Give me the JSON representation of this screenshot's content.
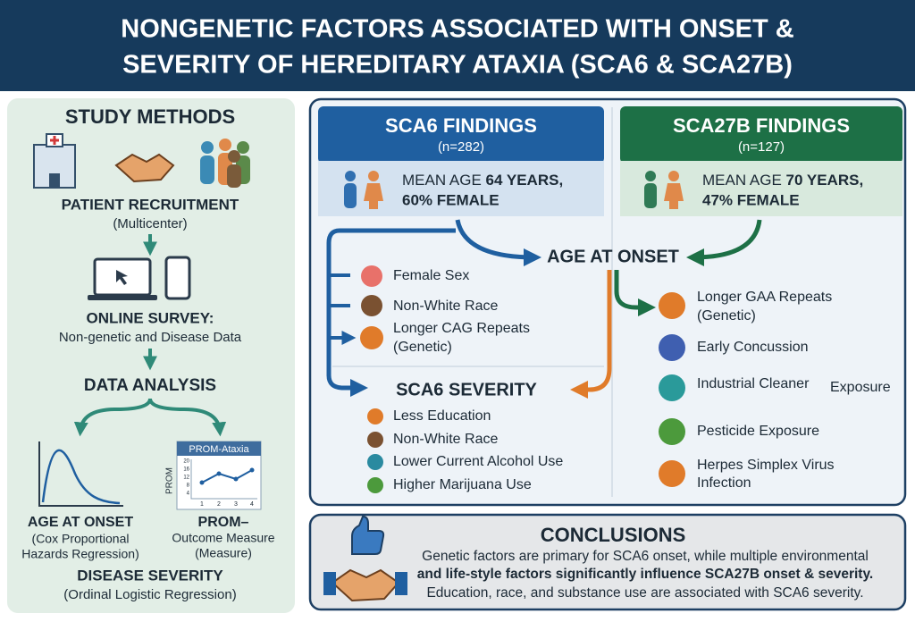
{
  "header": {
    "title_lines": [
      "NONGENETIC FACTORS ASSOCIATED WITH ONSET &",
      "SEVERITY OF HEREDITARY ATAXIA (SCA6 & SCA27B)"
    ]
  },
  "methods": {
    "title": "STUDY METHODS",
    "recruitment": {
      "label": "PATIENT RECRUITMENT",
      "sub": "(Multicenter)"
    },
    "survey": {
      "label": "ONLINE SURVEY:",
      "sub": "Non-genetic and Disease Data"
    },
    "analysis": {
      "label": "DATA ANALYSIS"
    },
    "onset": {
      "label": "AGE AT ONSET",
      "sub_lines": [
        "(Cox Proportional",
        "Hazards Regression)"
      ]
    },
    "prom": {
      "label": "PROM–",
      "sub_lines": [
        "Outcome Measure",
        "(Measure)"
      ],
      "chart_title": "PROM-Ataxia",
      "axis_label": "PROM",
      "xticks": [
        "1",
        "2",
        "3",
        "4"
      ],
      "yticks": [
        "20",
        "16",
        "12",
        "8",
        "4"
      ]
    },
    "severity": {
      "label": "DISEASE SEVERITY",
      "sub": "(Ordinal Logistic Regression)"
    }
  },
  "sca6": {
    "title": "SCA6 FINDINGS",
    "n": "(n=282)",
    "demo_prefix": "MEAN AGE",
    "demo_bold": "64 YEARS,",
    "demo_line2": "60% FEMALE"
  },
  "sca27b": {
    "title": "SCA27B FINDINGS",
    "n": "(n=127)",
    "demo_prefix": "MEAN AGE",
    "demo_bold": "70 YEARS,",
    "demo_line2": "47% FEMALE"
  },
  "onset": {
    "title": "AGE AT ONSET"
  },
  "sca6_onset_factors": [
    "Female Sex",
    "Non-White Race",
    "Longer CAG Repeats",
    "(Genetic)"
  ],
  "sca6_severity": {
    "title": "SCA6 SEVERITY",
    "factors": [
      "Less Education",
      "Non-White Race",
      "Lower Current Alcohol Use",
      "Higher Marijuana Use"
    ]
  },
  "sca27b_factors": [
    "Longer GAA Repeats",
    "(Genetic)",
    "Early Concussion",
    "Industrial Cleaner",
    "Exposure",
    "Pesticide Exposure",
    "Herpes Simplex Virus",
    "Infection"
  ],
  "conclusions": {
    "title": "CONCLUSIONS",
    "lines": [
      "Genetic factors are primary for SCA6 onset, while multiple environmental",
      "and life-style factors significantly influence SCA27B onset & severity.",
      "Education, race, and substance use are associated with SCA6 severity."
    ]
  }
}
